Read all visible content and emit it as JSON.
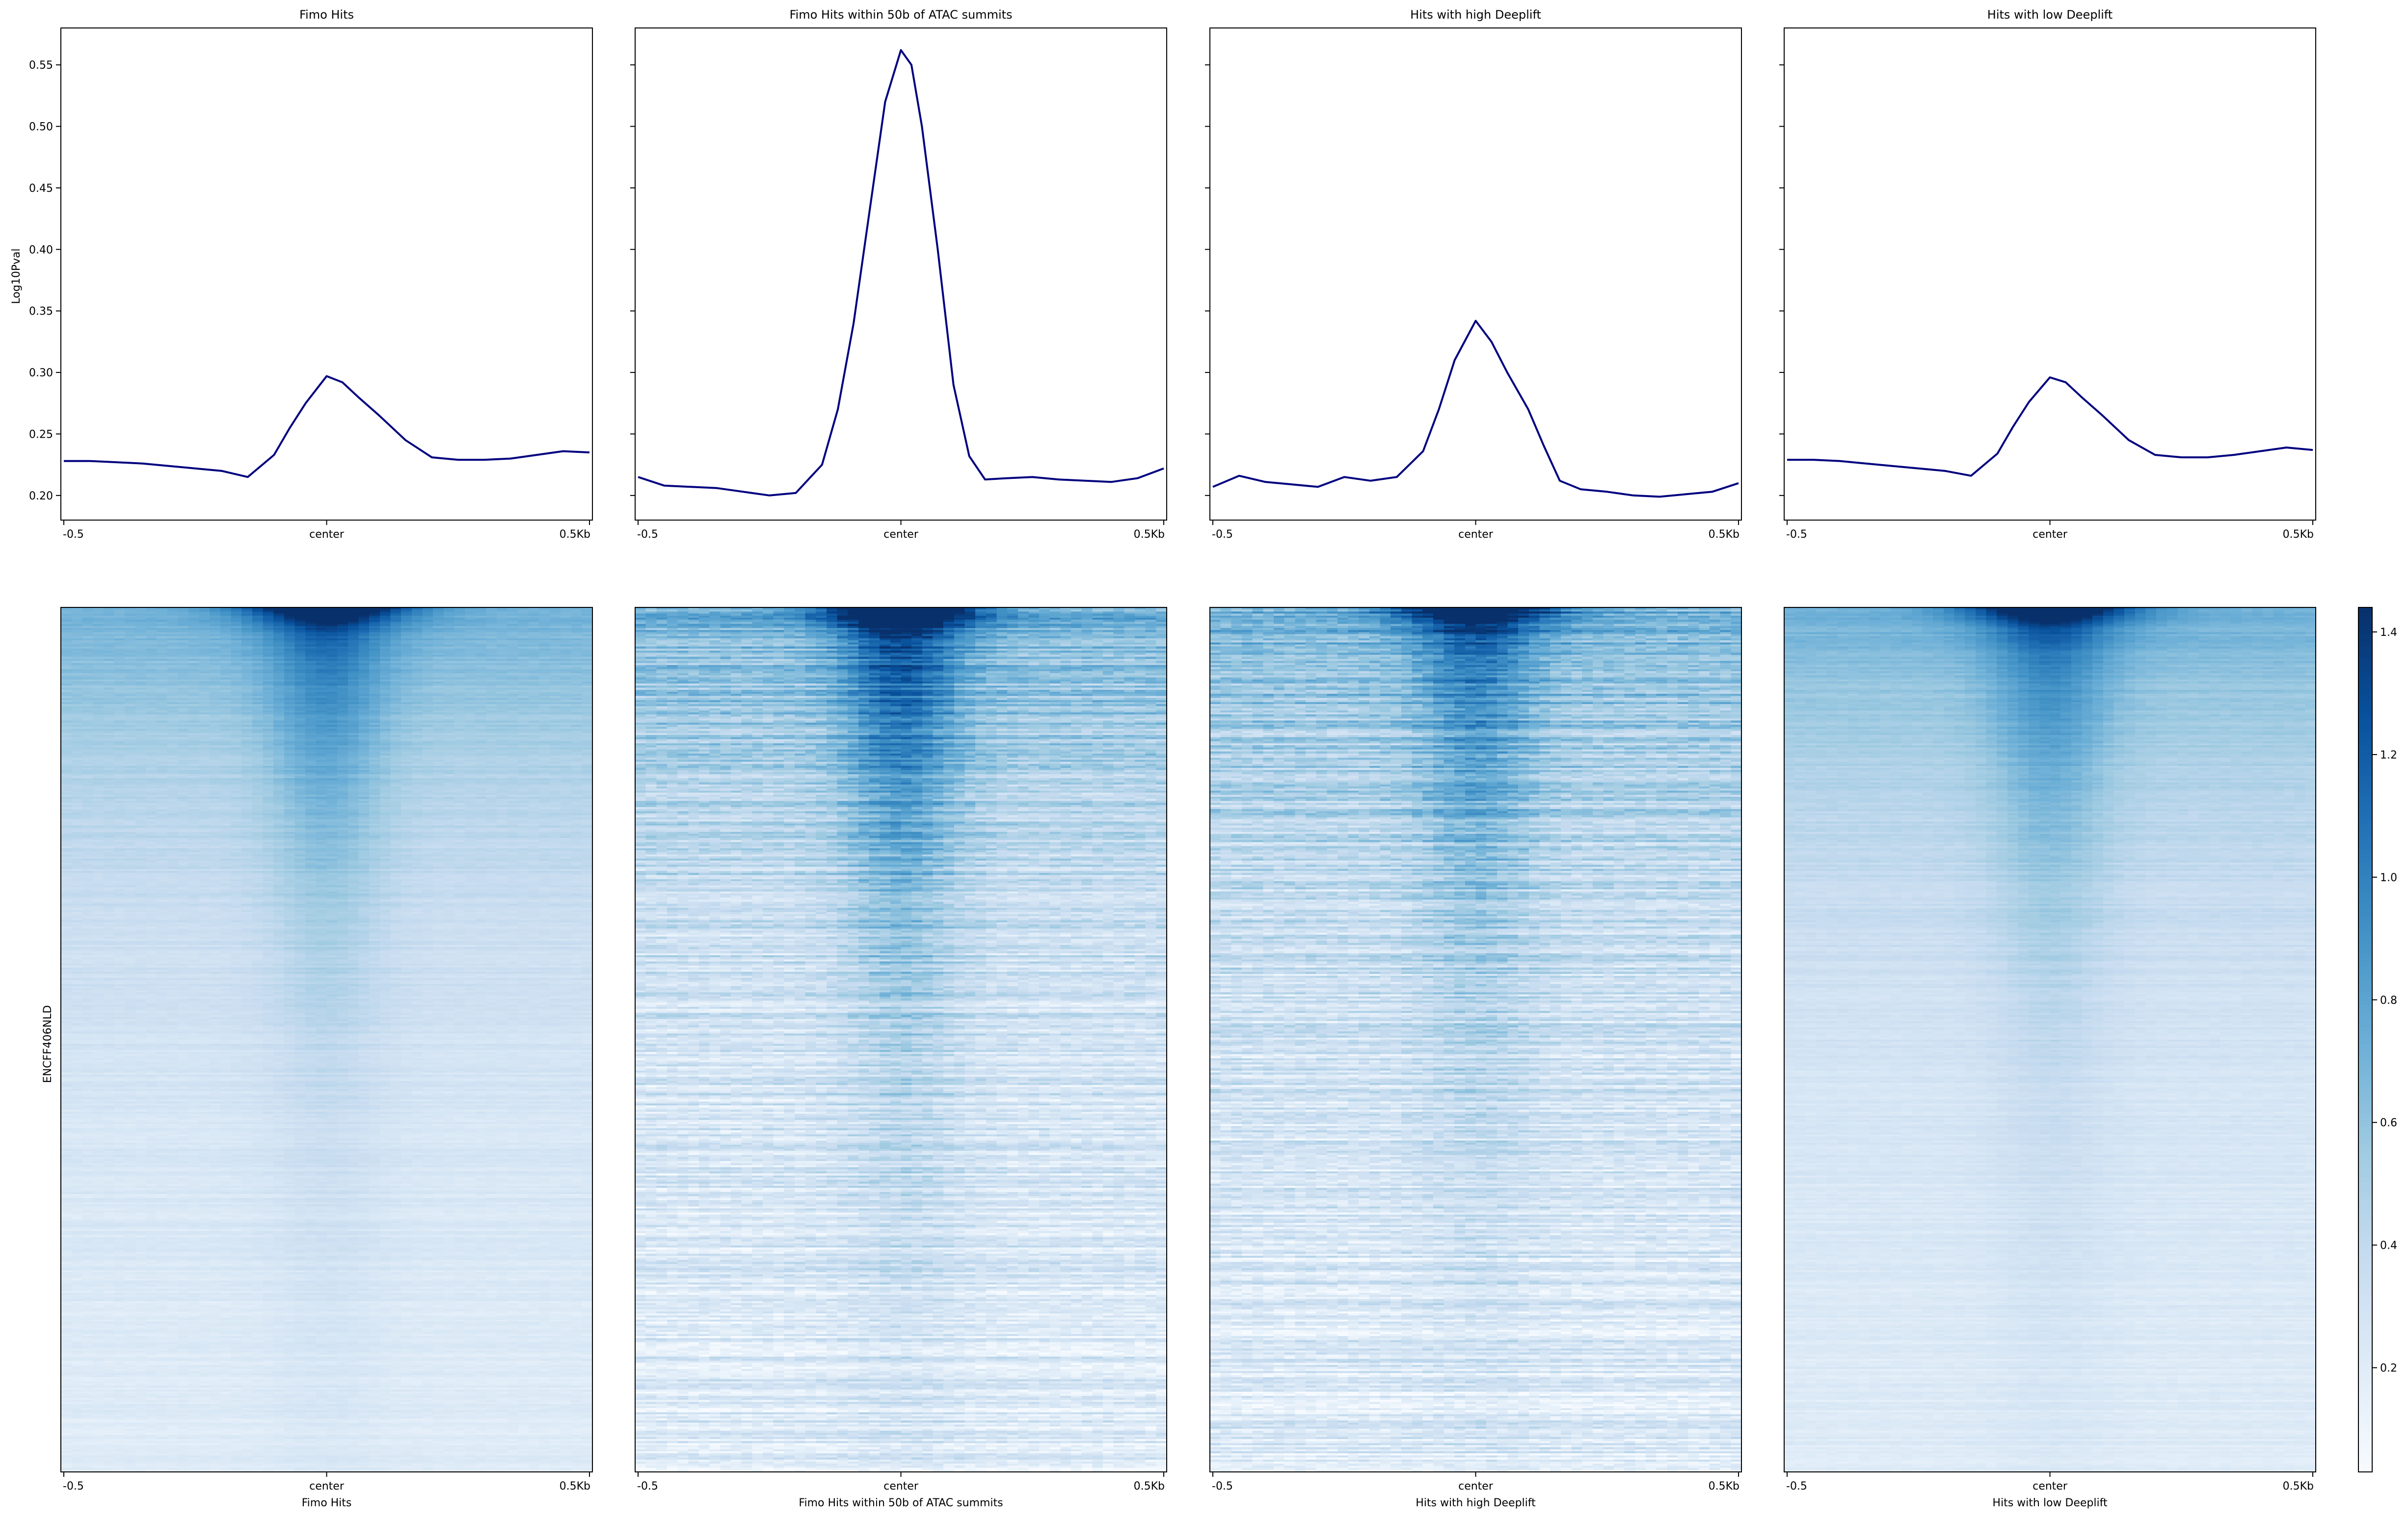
{
  "figure": {
    "ylabel_profile": "Log10Pval",
    "ylabel_heatmap": "ENCFF406NLD",
    "line_color": "#00007f",
    "colormap": [
      "#f7fbff",
      "#deebf7",
      "#c6dbef",
      "#9ecae1",
      "#6baed6",
      "#4292c6",
      "#2171b5",
      "#08519c",
      "#08306b"
    ]
  },
  "chart_data": [
    {
      "type": "line",
      "title": "Fimo Hits",
      "xticks": [
        "-0.5",
        "center",
        "0.5Kb"
      ],
      "yticks": [
        "0.20",
        "0.25",
        "0.30",
        "0.35",
        "0.40",
        "0.45",
        "0.50",
        "0.55"
      ],
      "ylim": [
        0.18,
        0.58
      ],
      "x": [
        -0.5,
        -0.45,
        -0.4,
        -0.35,
        -0.3,
        -0.25,
        -0.2,
        -0.15,
        -0.1,
        -0.07,
        -0.04,
        0,
        0.03,
        0.06,
        0.1,
        0.15,
        0.2,
        0.25,
        0.3,
        0.35,
        0.4,
        0.45,
        0.5
      ],
      "values": [
        0.228,
        0.228,
        0.227,
        0.226,
        0.224,
        0.222,
        0.22,
        0.215,
        0.233,
        0.255,
        0.275,
        0.297,
        0.292,
        0.28,
        0.265,
        0.245,
        0.231,
        0.229,
        0.229,
        0.23,
        0.233,
        0.236,
        0.235
      ]
    },
    {
      "type": "line",
      "title": "Fimo Hits within 50b of ATAC summits",
      "xticks": [
        "-0.5",
        "center",
        "0.5Kb"
      ],
      "ylim": [
        0.18,
        0.58
      ],
      "x": [
        -0.5,
        -0.45,
        -0.4,
        -0.35,
        -0.3,
        -0.25,
        -0.2,
        -0.15,
        -0.12,
        -0.09,
        -0.06,
        -0.03,
        0,
        0.02,
        0.04,
        0.07,
        0.1,
        0.13,
        0.16,
        0.2,
        0.25,
        0.3,
        0.35,
        0.4,
        0.45,
        0.5
      ],
      "values": [
        0.215,
        0.208,
        0.207,
        0.206,
        0.203,
        0.2,
        0.202,
        0.225,
        0.27,
        0.34,
        0.43,
        0.52,
        0.562,
        0.55,
        0.5,
        0.4,
        0.29,
        0.232,
        0.213,
        0.214,
        0.215,
        0.213,
        0.212,
        0.211,
        0.214,
        0.222
      ]
    },
    {
      "type": "line",
      "title": "Hits with high Deeplift",
      "xticks": [
        "-0.5",
        "center",
        "0.5Kb"
      ],
      "ylim": [
        0.18,
        0.58
      ],
      "x": [
        -0.5,
        -0.45,
        -0.4,
        -0.35,
        -0.3,
        -0.25,
        -0.2,
        -0.15,
        -0.1,
        -0.07,
        -0.04,
        0,
        0.03,
        0.06,
        0.1,
        0.13,
        0.16,
        0.2,
        0.25,
        0.3,
        0.35,
        0.4,
        0.45,
        0.5
      ],
      "values": [
        0.207,
        0.216,
        0.211,
        0.209,
        0.207,
        0.215,
        0.212,
        0.215,
        0.236,
        0.27,
        0.31,
        0.342,
        0.325,
        0.3,
        0.27,
        0.24,
        0.212,
        0.205,
        0.203,
        0.2,
        0.199,
        0.201,
        0.203,
        0.21
      ]
    },
    {
      "type": "line",
      "title": "Hits with low Deeplift",
      "xticks": [
        "-0.5",
        "center",
        "0.5Kb"
      ],
      "ylim": [
        0.18,
        0.58
      ],
      "x": [
        -0.5,
        -0.45,
        -0.4,
        -0.35,
        -0.3,
        -0.25,
        -0.2,
        -0.15,
        -0.1,
        -0.07,
        -0.04,
        0,
        0.03,
        0.06,
        0.1,
        0.15,
        0.2,
        0.25,
        0.3,
        0.35,
        0.4,
        0.45,
        0.5
      ],
      "values": [
        0.229,
        0.229,
        0.228,
        0.226,
        0.224,
        0.222,
        0.22,
        0.216,
        0.234,
        0.256,
        0.276,
        0.296,
        0.292,
        0.28,
        0.265,
        0.245,
        0.233,
        0.231,
        0.231,
        0.233,
        0.236,
        0.239,
        0.237
      ]
    },
    {
      "type": "heatmap",
      "xlabel": "Fimo Hits",
      "xticks": [
        "-0.5",
        "center",
        "0.5Kb"
      ],
      "center_strength": 0.9,
      "noise": 0.08
    },
    {
      "type": "heatmap",
      "xlabel": "Fimo Hits within 50b of ATAC summits",
      "xticks": [
        "-0.5",
        "center",
        "0.5Kb"
      ],
      "center_strength": 1.4,
      "noise": 0.3
    },
    {
      "type": "heatmap",
      "xlabel": "Hits with high Deeplift",
      "xticks": [
        "-0.5",
        "center",
        "0.5Kb"
      ],
      "center_strength": 1.0,
      "noise": 0.32
    },
    {
      "type": "heatmap",
      "xlabel": "Hits with low Deeplift",
      "xticks": [
        "-0.5",
        "center",
        "0.5Kb"
      ],
      "center_strength": 0.85,
      "noise": 0.08
    },
    {
      "type": "colorbar",
      "ticks": [
        "0.2",
        "0.4",
        "0.6",
        "0.8",
        "1.0",
        "1.2",
        "1.4"
      ],
      "tick_values": [
        0.2,
        0.4,
        0.6,
        0.8,
        1.0,
        1.2,
        1.4
      ],
      "range": [
        0.03,
        1.44
      ]
    }
  ]
}
